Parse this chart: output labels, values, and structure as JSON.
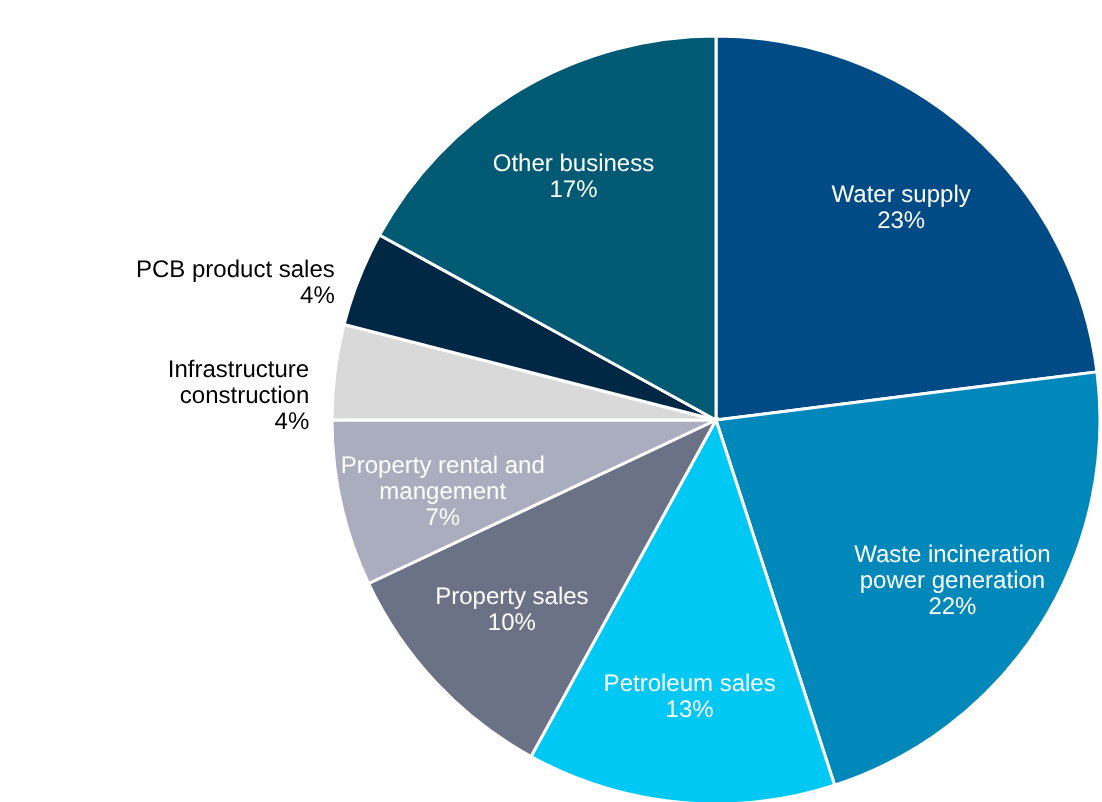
{
  "chart_data": {
    "type": "pie",
    "categories": [
      "Water supply",
      "Waste incineration power generation",
      "Petroleum sales",
      "Property sales",
      "Property rental and mangement",
      "Infrastructure construction",
      "PCB product sales",
      "Other business"
    ],
    "values": [
      23,
      22,
      13,
      10,
      7,
      4,
      4,
      17
    ],
    "value_labels": [
      "23%",
      "22%",
      "13%",
      "10%",
      "7%",
      "4%",
      "4%",
      "17%"
    ],
    "colors": [
      "#004a86",
      "#0088ba",
      "#00c8f5",
      "#6c7285",
      "#a9adbd",
      "#d9d9d9",
      "#002845",
      "#005a74"
    ]
  }
}
